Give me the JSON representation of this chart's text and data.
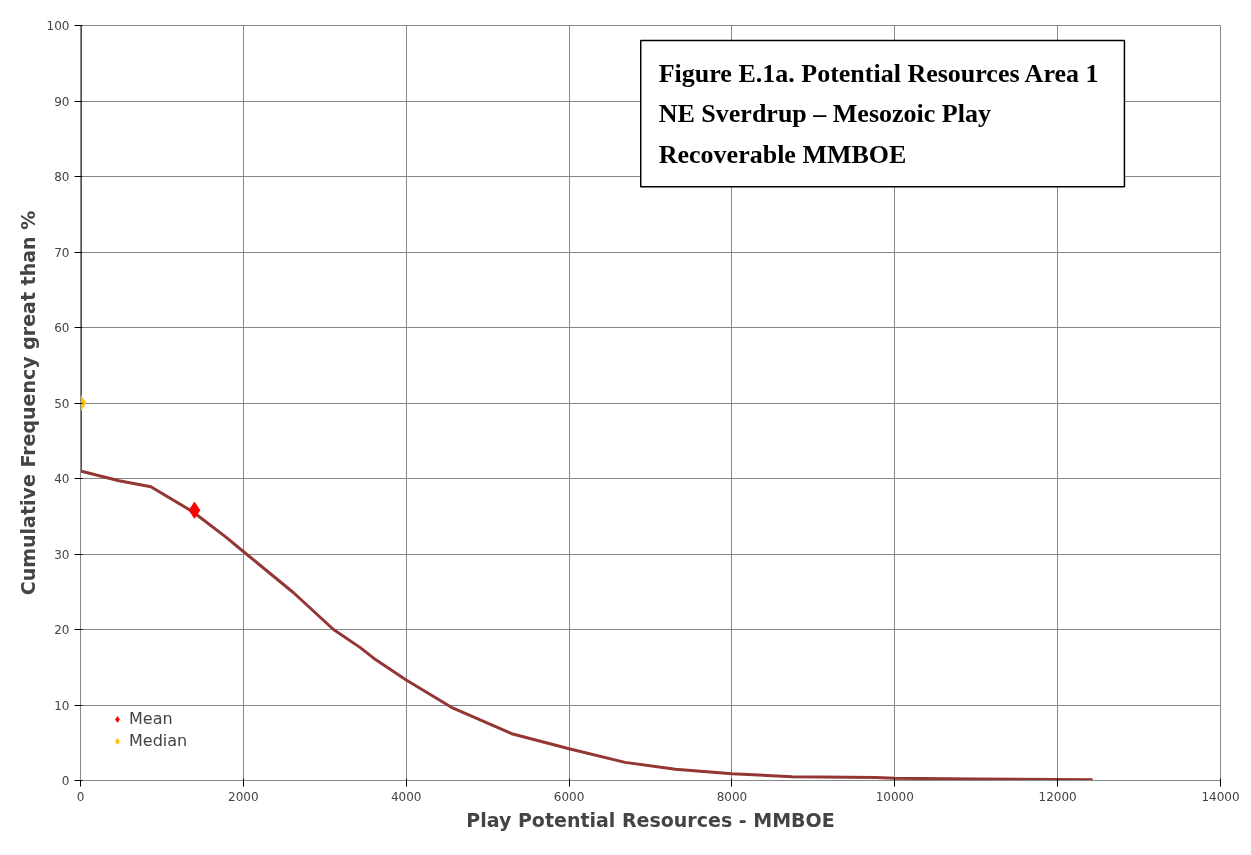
{
  "chart_data": {
    "type": "line",
    "title": "Figure E.1a.  Potential Resources Area 1\nNE Sverdrup – Mesozoic Play\nRecoverable MMBOE",
    "xlabel": "Play Potential Resources - MMBOE",
    "ylabel": "Cumulative Frequency great than %",
    "xlim": [
      0,
      14000
    ],
    "ylim": [
      0,
      100
    ],
    "xticks": [
      0,
      2000,
      4000,
      6000,
      8000,
      10000,
      12000,
      14000
    ],
    "yticks": [
      0,
      10,
      20,
      30,
      40,
      50,
      60,
      70,
      80,
      90,
      100
    ],
    "grid": true,
    "legend": "bottom left",
    "series": [
      {
        "color": "#943634",
        "marker": "none",
        "line_style": "solid",
        "x": [
          0,
          0,
          473,
          864,
          1379,
          1790,
          2037,
          2613,
          3107,
          3436,
          3600,
          4000,
          4555,
          5296,
          6000,
          6687,
          7305,
          8000,
          8740,
          9770,
          10000,
          11000,
          12430
        ],
        "values": [
          100,
          41,
          39.7,
          38.9,
          35.6,
          32.2,
          30,
          24.9,
          20,
          17.6,
          16.2,
          13.3,
          9.7,
          6.2,
          4.2,
          2.4,
          1.5,
          0.9,
          0.5,
          0.4,
          0.3,
          0.2,
          0.1
        ]
      },
      {
        "type": "scatter",
        "name": "Mean",
        "color": "#ff0000",
        "marker": "diamond",
        "x": [
          1400
        ],
        "values": [
          35.8
        ]
      },
      {
        "type": "scatter",
        "name": "Median",
        "color": "#ffc000",
        "marker": "diamond",
        "x": [
          0
        ],
        "values": [
          50
        ]
      }
    ]
  }
}
